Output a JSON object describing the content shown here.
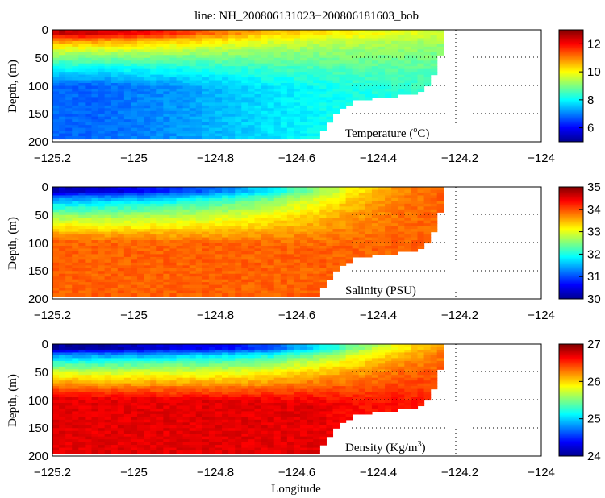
{
  "figure": {
    "title": "line: NH_200806131023−200806181603_bob",
    "xlabel": "Longitude"
  },
  "chart_data": [
    {
      "type": "heatmap",
      "name": "temperature",
      "panel_label_main": "Temperature (",
      "panel_label_sup": "o",
      "panel_label_end": "C)",
      "ylabel": "Depth, (m)",
      "xlim": [
        -125.2,
        -124.0
      ],
      "ylim": [
        0,
        200
      ],
      "xticks": [
        -125.2,
        -125.0,
        -124.8,
        -124.6,
        -124.4,
        -124.2,
        -124.0
      ],
      "xtick_labels": [
        "−125.2",
        "−125",
        "−124.8",
        "−124.6",
        "−124.4",
        "−124.2",
        "−124"
      ],
      "yticks": [
        0,
        50,
        100,
        150,
        200
      ],
      "ytick_labels": [
        "0",
        "50",
        "100",
        "150",
        "200"
      ],
      "colorbar": {
        "min": 5,
        "max": 13,
        "ticks": [
          6,
          8,
          10,
          12
        ],
        "tick_labels": [
          "6",
          "8",
          "10",
          "12"
        ]
      },
      "profile_surface": [
        12.5,
        12.3,
        12.0,
        11.5,
        11.0,
        10.5,
        10.2,
        10.0,
        9.8,
        9.6
      ],
      "profile_deep": [
        6.8,
        6.8,
        7.0,
        7.2,
        7.5,
        7.8,
        8.0,
        8.2,
        8.3,
        8.4
      ]
    },
    {
      "type": "heatmap",
      "name": "salinity",
      "panel_label_main": "Salinity (PSU)",
      "ylabel": "Depth, (m)",
      "xlim": [
        -125.2,
        -124.0
      ],
      "ylim": [
        0,
        200
      ],
      "xticks": [
        -125.2,
        -125.0,
        -124.8,
        -124.6,
        -124.4,
        -124.2,
        -124.0
      ],
      "xtick_labels": [
        "−125.2",
        "−125",
        "−124.8",
        "−124.6",
        "−124.4",
        "−124.2",
        "−124"
      ],
      "yticks": [
        0,
        50,
        100,
        150,
        200
      ],
      "ytick_labels": [
        "0",
        "50",
        "100",
        "150",
        "200"
      ],
      "colorbar": {
        "min": 30,
        "max": 35,
        "ticks": [
          30,
          31,
          32,
          33,
          34,
          35
        ],
        "tick_labels": [
          "30",
          "31",
          "32",
          "33",
          "34",
          "35"
        ]
      },
      "profile_surface": [
        30.3,
        30.4,
        30.6,
        30.9,
        31.3,
        31.8,
        32.5,
        33.2,
        33.7,
        33.9
      ],
      "profile_deep": [
        33.9,
        33.9,
        33.9,
        33.9,
        33.9,
        33.9,
        33.9,
        33.9,
        33.9,
        33.9
      ]
    },
    {
      "type": "heatmap",
      "name": "density",
      "panel_label_main": "Density (Kg/m",
      "panel_label_sup": "3",
      "panel_label_end": ")",
      "ylabel": "Depth, (m)",
      "xlim": [
        -125.2,
        -124.0
      ],
      "ylim": [
        0,
        200
      ],
      "xticks": [
        -125.2,
        -125.0,
        -124.8,
        -124.6,
        -124.4,
        -124.2,
        -124.0
      ],
      "xtick_labels": [
        "−125.2",
        "−125",
        "−124.8",
        "−124.6",
        "−124.4",
        "−124.2",
        "−124"
      ],
      "yticks": [
        0,
        50,
        100,
        150,
        200
      ],
      "ytick_labels": [
        "0",
        "50",
        "100",
        "150",
        "200"
      ],
      "colorbar": {
        "min": 24,
        "max": 27,
        "ticks": [
          24,
          25,
          26,
          27
        ],
        "tick_labels": [
          "24",
          "25",
          "26",
          "27"
        ]
      },
      "profile_surface": [
        24.1,
        24.1,
        24.2,
        24.3,
        24.4,
        24.6,
        25.0,
        25.5,
        25.9,
        26.2
      ],
      "profile_deep": [
        26.7,
        26.7,
        26.7,
        26.7,
        26.7,
        26.7,
        26.7,
        26.6,
        26.6,
        26.5
      ]
    }
  ],
  "section_bottom_depth": [
    [
      -125.2,
      195
    ],
    [
      -124.55,
      195
    ],
    [
      -124.5,
      145
    ],
    [
      -124.45,
      125
    ],
    [
      -124.4,
      122
    ],
    [
      -124.3,
      112
    ],
    [
      -124.27,
      92
    ],
    [
      -124.26,
      70
    ],
    [
      -124.25,
      50
    ],
    [
      -124.24,
      30
    ],
    [
      -124.24,
      0
    ]
  ]
}
